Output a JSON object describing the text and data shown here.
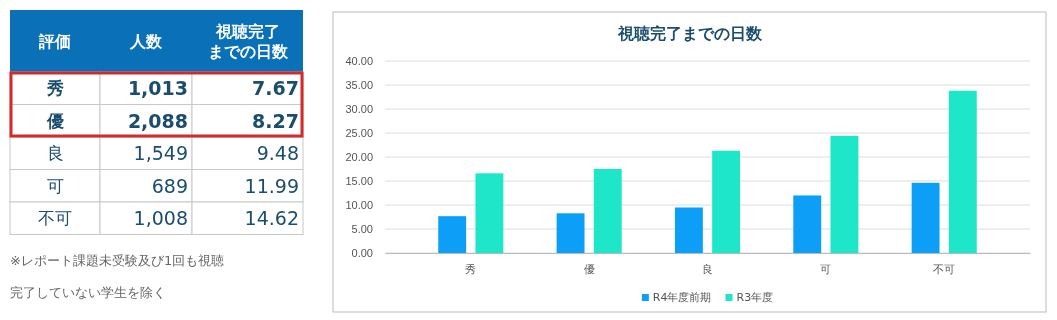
{
  "chart_data": [
    {
      "type": "other",
      "annotations": [
        "評価",
        "人数",
        "視聴完了までの日数",
        "秀",
        "1,013",
        "7.67",
        "優",
        "2,088",
        "8.27",
        "良",
        "1,549",
        "9.48",
        "可",
        "689",
        "11.99",
        "不可",
        "1,008",
        "14.62",
        "※レポート課題未受験及び1回も視聴完了していない学生を除く"
      ]
    },
    {
      "type": "bar",
      "title": "視聴完了までの日数",
      "categories": [
        "秀",
        "優",
        "良",
        "可",
        "不可"
      ],
      "series": [
        {
          "name": "R4年度前期",
          "color": "#0d9ef7",
          "values": [
            7.67,
            8.27,
            9.48,
            11.99,
            14.62
          ]
        },
        {
          "name": "R3年度",
          "color": "#1ee6c8",
          "values": [
            16.6,
            17.5,
            21.3,
            24.4,
            33.8
          ]
        }
      ],
      "ylim": [
        0,
        40
      ],
      "yticks": [
        {
          "value": 0,
          "label": "0.00"
        },
        {
          "value": 5,
          "label": "5.00"
        },
        {
          "value": 10,
          "label": "10.00"
        },
        {
          "value": 15,
          "label": "15.00"
        },
        {
          "value": 20,
          "label": "20.00"
        },
        {
          "value": 25,
          "label": "25.00"
        },
        {
          "value": 30,
          "label": "30.00"
        },
        {
          "value": 35,
          "label": "35.00"
        },
        {
          "value": 40,
          "label": "40.00"
        }
      ],
      "grid": "y",
      "legend": "bottom"
    }
  ]
}
